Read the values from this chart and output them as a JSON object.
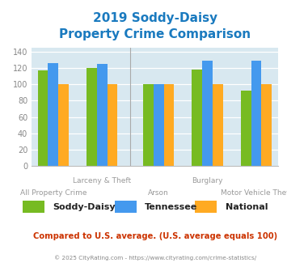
{
  "title_line1": "2019 Soddy-Daisy",
  "title_line2": "Property Crime Comparison",
  "title_color": "#1a7abf",
  "categories": [
    "All Property Crime",
    "Larceny & Theft",
    "Arson",
    "Burglary",
    "Motor Vehicle Theft"
  ],
  "soddy_daisy": [
    117,
    120,
    100,
    118,
    92
  ],
  "tennessee": [
    126,
    125,
    100,
    129,
    129
  ],
  "national": [
    100,
    100,
    100,
    100,
    100
  ],
  "bar_colors": {
    "soddy_daisy": "#77bb22",
    "tennessee": "#4499ee",
    "national": "#ffaa22"
  },
  "ylim": [
    0,
    145
  ],
  "yticks": [
    0,
    20,
    40,
    60,
    80,
    100,
    120,
    140
  ],
  "background_color": "#d8e8f0",
  "grid_color": "#ffffff",
  "legend_labels": [
    "Soddy-Daisy",
    "Tennessee",
    "National"
  ],
  "footnote1": "Compared to U.S. average. (U.S. average equals 100)",
  "footnote2": "© 2025 CityRating.com - https://www.cityrating.com/crime-statistics/",
  "footnote1_color": "#cc3300",
  "footnote2_color": "#888888",
  "xlabel_color": "#999999",
  "tick_color": "#888888",
  "divider_color": "#aaaaaa"
}
